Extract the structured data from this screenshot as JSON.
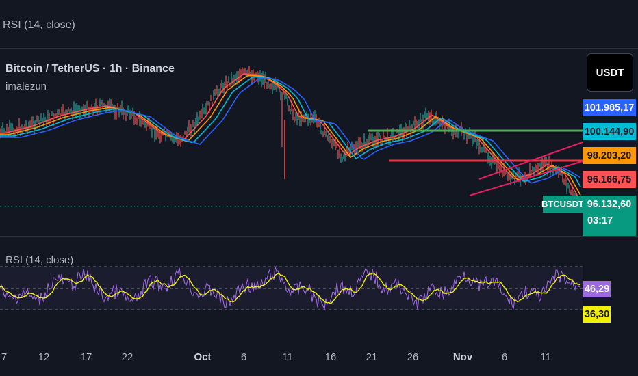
{
  "header": {
    "indicator_title": "RSI (14, close)"
  },
  "legend": {
    "symbol_title": "Bitcoin / TetherUS · 1h · Binance",
    "author": "imalezun"
  },
  "price_scale": {
    "currency": "USDT"
  },
  "price_labels": [
    {
      "value": "101.985,17",
      "color": "#2962ff",
      "text_color": "#ffffff"
    },
    {
      "value": "100.144,90",
      "color": "#00bcd4",
      "text_color": "#131722"
    },
    {
      "value": "98.203,20",
      "color": "#ff9800",
      "text_color": "#131722"
    },
    {
      "value": "96.166,75",
      "color": "#ff5252",
      "text_color": "#131722"
    }
  ],
  "last_price": {
    "symbol": "BTCUSDT",
    "value": "96.132,60",
    "countdown": "03:17",
    "color": "#089981"
  },
  "rsi_panel": {
    "title": "RSI (14, close)",
    "rsi_label": "46,29",
    "rsi_label_color": "#9c6ade",
    "ma_label": "36,30",
    "ma_label_color": "#f0f000"
  },
  "x_axis": {
    "ticks": [
      {
        "label": "7",
        "bold": false
      },
      {
        "label": "12",
        "bold": false
      },
      {
        "label": "17",
        "bold": false
      },
      {
        "label": "22",
        "bold": false
      },
      {
        "label": "Oct",
        "bold": true
      },
      {
        "label": "6",
        "bold": false
      },
      {
        "label": "11",
        "bold": false
      },
      {
        "label": "16",
        "bold": false
      },
      {
        "label": "21",
        "bold": false
      },
      {
        "label": "26",
        "bold": false
      },
      {
        "label": "Nov",
        "bold": true
      },
      {
        "label": "6",
        "bold": false
      },
      {
        "label": "11",
        "bold": false
      }
    ]
  },
  "chart_data": {
    "type": "line",
    "symbol": "BTCUSDT",
    "timeframe": "1h",
    "colors": {
      "ema_fast": "#ff5252",
      "ema_mid": "#ff9800",
      "ema_slow1": "#00bcd4",
      "ema_slow2": "#2962ff",
      "support_line": "#4caf50",
      "resistance_line": "#f23645",
      "trend_line": "#e91e63",
      "rsi": "#9c6ade",
      "rsi_ma": "#f0f000"
    },
    "price_levels_marked": [
      101985.17,
      100144.9,
      98203.2,
      96166.75,
      96132.6
    ],
    "rsi_last": 46.29,
    "rsi_ma_last": 36.3
  }
}
